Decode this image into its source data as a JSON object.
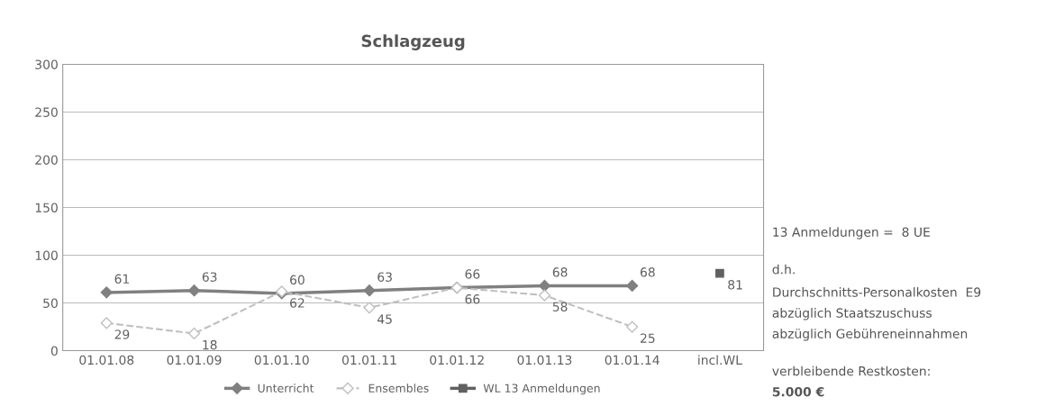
{
  "chart_data": {
    "type": "line",
    "title": "Schlagzeug",
    "categories": [
      "01.01.08",
      "01.01.09",
      "01.01.10",
      "01.01.11",
      "01.01.12",
      "01.01.13",
      "01.01.14",
      "incl.WL"
    ],
    "series": [
      {
        "name": "Unterricht",
        "color": "#808080",
        "marker": "diamond",
        "line_style": "solid",
        "values": [
          61,
          63,
          60,
          63,
          66,
          68,
          68,
          null
        ]
      },
      {
        "name": "Ensembles",
        "color": "#c0c0c0",
        "marker": "diamond",
        "line_style": "dashed",
        "values": [
          29,
          18,
          62,
          45,
          66,
          58,
          25,
          null
        ]
      },
      {
        "name": "WL 13 Anmeldungen",
        "color": "#606060",
        "marker": "square",
        "line_style": "solid",
        "values": [
          null,
          null,
          null,
          null,
          null,
          null,
          null,
          81
        ]
      }
    ],
    "ylim": [
      0,
      300
    ],
    "yticks": [
      0,
      50,
      100,
      150,
      200,
      250,
      300
    ],
    "grid": "y",
    "legend": "bottom",
    "data_labels": true,
    "annotations": [
      "13 Anmeldungen =  8 UE",
      "d.h.",
      "Durchschnitts-Personalkosten  E9",
      "abzüglich Staatszuschuss",
      "abzüglich Gebühreneinnahmen",
      "verbleibende Restkosten:",
      "5.000 €"
    ]
  }
}
